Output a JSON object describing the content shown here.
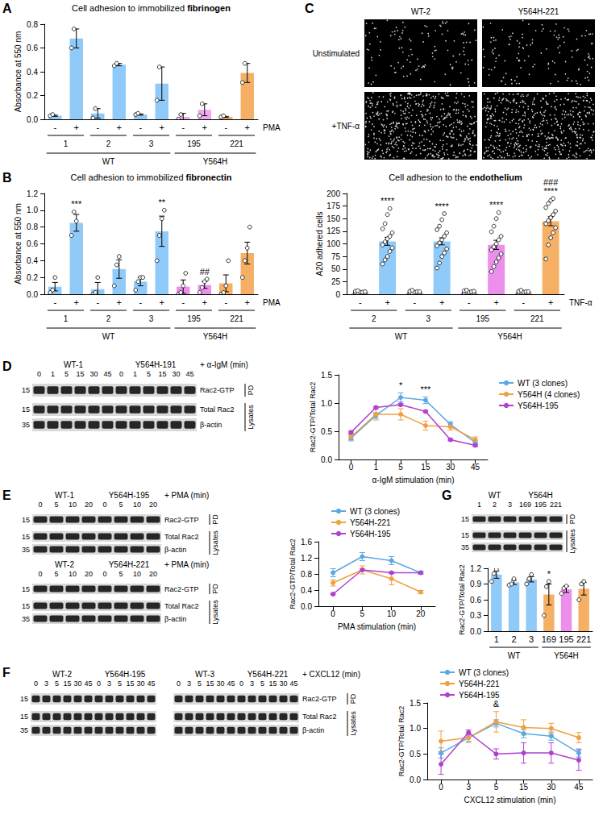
{
  "chart_data": [
    {
      "panel": "A",
      "type": "bar",
      "title": "Cell adhesion to immobilized fibrinogen",
      "y_label": "Absorbance at 550 nm",
      "categories": [
        "-",
        "+",
        "-",
        "+",
        "-",
        "+",
        "-",
        "+",
        "-",
        "+"
      ],
      "stimulus": "PMA",
      "clones": [
        "1",
        "2",
        "3",
        "195",
        "221"
      ],
      "genotypes": [
        {
          "label": "WT",
          "clones": 3
        },
        {
          "label": "Y564H",
          "clones": 2
        }
      ],
      "values": [
        0.03,
        0.68,
        0.05,
        0.46,
        0.04,
        0.3,
        0.02,
        0.08,
        0.02,
        0.39
      ],
      "errors": [
        0.005,
        0.08,
        0.04,
        0.01,
        0.005,
        0.14,
        0.03,
        0.05,
        0.005,
        0.08
      ],
      "points": [
        [
          0.03,
          0.04
        ],
        [
          0.6,
          0.76
        ],
        [
          0.01,
          0.09
        ],
        [
          0.45,
          0.47
        ],
        [
          0.04,
          0.05
        ],
        [
          0.16,
          0.44
        ],
        [
          0.0,
          0.04
        ],
        [
          0.03,
          0.13
        ],
        [
          0.02,
          0.03
        ],
        [
          0.31,
          0.47
        ]
      ],
      "colors": [
        "#90caf9",
        "#90caf9",
        "#90caf9",
        "#90caf9",
        "#90caf9",
        "#90caf9",
        "#f0a8f0",
        "#f0a8f0",
        "#f5b066",
        "#f5b066"
      ],
      "ylim": [
        0,
        0.8
      ],
      "yticks": [
        {
          "value": 0,
          "label": "0.0"
        },
        0.2,
        0.4,
        0.6,
        0.8
      ]
    },
    {
      "panel": "B",
      "type": "bar",
      "title": "Cell adhesion to immobilized fibronectin",
      "y_label": "Absorbance at 550 nm",
      "categories": [
        "-",
        "+",
        "-",
        "+",
        "-",
        "+",
        "-",
        "+",
        "-",
        "+"
      ],
      "stimulus": "PMA",
      "clones": [
        "1",
        "2",
        "3",
        "195",
        "221"
      ],
      "genotypes": [
        {
          "label": "WT",
          "clones": 3
        },
        {
          "label": "Y564H",
          "clones": 2
        }
      ],
      "values": [
        0.09,
        0.85,
        0.06,
        0.3,
        0.15,
        0.75,
        0.09,
        0.11,
        0.13,
        0.49
      ],
      "errors": [
        0.05,
        0.1,
        0.08,
        0.11,
        0.05,
        0.18,
        0.08,
        0.04,
        0.1,
        0.13
      ],
      "points": [
        [
          0.02,
          0.05,
          0.2
        ],
        [
          0.7,
          0.98,
          0.87
        ],
        [
          0.0,
          0.02,
          0.2
        ],
        [
          0.1,
          0.35,
          0.45
        ],
        [
          0.05,
          0.15,
          0.2,
          0.2
        ],
        [
          0.4,
          0.7,
          0.9,
          1.0
        ],
        [
          0.0,
          0.02,
          0.1,
          0.25
        ],
        [
          0.02,
          0.08,
          0.15,
          0.18
        ],
        [
          0.0,
          0.02,
          0.1,
          0.4
        ],
        [
          0.2,
          0.4,
          0.55,
          0.8
        ]
      ],
      "colors": [
        "#90caf9",
        "#90caf9",
        "#90caf9",
        "#90caf9",
        "#90caf9",
        "#90caf9",
        "#ec8fec",
        "#ec8fec",
        "#f5b066",
        "#f5b066"
      ],
      "annotations": [
        {
          "index": 1,
          "text": "***"
        },
        {
          "index": 5,
          "text": "**"
        },
        {
          "index": 7,
          "text": "##"
        }
      ],
      "ylim": [
        0,
        1.2
      ],
      "yticks": [
        {
          "value": 0,
          "label": "0.0"
        },
        0.2,
        0.4,
        0.6,
        0.8,
        {
          "value": 1,
          "label": "1.0"
        },
        1.2
      ]
    },
    {
      "type": "bar",
      "title": "Cell adhesion to the endothelium",
      "y_label": "A20 adhered cells",
      "categories": [
        "-",
        "+",
        "-",
        "+",
        "-",
        "+",
        "-",
        "+"
      ],
      "stimulus": "TNF-α",
      "clones": [
        "2",
        "3",
        "195",
        "221"
      ],
      "genotypes": [
        {
          "label": "WT",
          "clones": 2
        },
        {
          "label": "Y564H",
          "clones": 2
        }
      ],
      "values": [
        3,
        105,
        3,
        105,
        3,
        98,
        3,
        145
      ],
      "errors": [
        0.7,
        8,
        0.7,
        7,
        0.7,
        9,
        0.7,
        9
      ],
      "points": [
        [
          0,
          1,
          1,
          2,
          2,
          3,
          3,
          4,
          4,
          5,
          6,
          7
        ],
        [
          60,
          68,
          75,
          85,
          92,
          98,
          104,
          110,
          115,
          122,
          130,
          140,
          158,
          170
        ],
        [
          0,
          0,
          1,
          2,
          2,
          3,
          3,
          4,
          5,
          5,
          6,
          8
        ],
        [
          52,
          62,
          75,
          82,
          90,
          96,
          102,
          108,
          115,
          122,
          128,
          135,
          148,
          160
        ],
        [
          0,
          1,
          1,
          2,
          3,
          3,
          4,
          4,
          5,
          6,
          7,
          8
        ],
        [
          45,
          55,
          64,
          72,
          80,
          88,
          94,
          100,
          108,
          115,
          124,
          135,
          150,
          162
        ],
        [
          0,
          1,
          2,
          2,
          3,
          3,
          4,
          4,
          5,
          5,
          6,
          8
        ],
        [
          70,
          98,
          112,
          122,
          132,
          140,
          146,
          152,
          158,
          165,
          172,
          180,
          186,
          190
        ]
      ],
      "colors": [
        "#90caf9",
        "#90caf9",
        "#90caf9",
        "#90caf9",
        "#ec8fec",
        "#ec8fec",
        "#f5b066",
        "#f5b066"
      ],
      "annotations": [
        {
          "index": 1,
          "text": "****"
        },
        {
          "index": 3,
          "text": "****"
        },
        {
          "index": 5,
          "text": "****"
        },
        {
          "index": 7,
          "text": "****"
        },
        {
          "index": 7,
          "text": "###"
        }
      ],
      "ylim": [
        0,
        200
      ],
      "yticks": [
        0,
        25,
        50,
        75,
        100,
        125,
        150,
        175,
        200
      ]
    },
    {
      "panel": "D",
      "type": "line",
      "x_label": "α-IgM stimulation (min)",
      "y_label": "Rac2-GTP/Total Rac2",
      "categories": [
        "0",
        "1",
        "5",
        "15",
        "30",
        "45"
      ],
      "marker": "circle",
      "legend": "right",
      "series": [
        {
          "name": "WT (3 clones)",
          "color": "#5aa9e6",
          "values": [
            0.38,
            0.78,
            1.1,
            1.05,
            0.62,
            0.3
          ],
          "errors": [
            0.05,
            0.05,
            0.08,
            0.06,
            0.05,
            0.04
          ]
        },
        {
          "name": "Y564H (4 clones)",
          "color": "#f0a040",
          "values": [
            0.4,
            0.8,
            0.8,
            0.6,
            0.58,
            0.35
          ],
          "errors": [
            0.05,
            0.1,
            0.1,
            0.08,
            0.06,
            0.05
          ]
        },
        {
          "name": "Y564H-195",
          "color": "#b040d0",
          "values": [
            0.48,
            0.92,
            0.97,
            0.85,
            0.35,
            0.25
          ],
          "errors": [
            0.02,
            0.02,
            0.02,
            0.02,
            0.02,
            0.02
          ]
        }
      ],
      "annotations": [
        {
          "index": 2,
          "text": "*"
        },
        {
          "index": 3,
          "text": "***"
        }
      ],
      "ylim": [
        0,
        1.5
      ],
      "yticks": [
        {
          "value": 0,
          "label": "0.0"
        },
        0.5,
        {
          "value": 1,
          "label": "1.0"
        },
        1.5
      ]
    },
    {
      "panel": "E",
      "type": "line",
      "x_label": "PMA stimulation (min)",
      "y_label": "Rac2-GTP/Total Rac2",
      "categories": [
        "0",
        "5",
        "10",
        "20"
      ],
      "marker": "circle",
      "legend": "top",
      "series": [
        {
          "name": "WT (3 clones)",
          "color": "#5aa9e6",
          "values": [
            0.83,
            1.23,
            1.13,
            0.83
          ],
          "errors": [
            0.1,
            0.1,
            0.1,
            0.04
          ]
        },
        {
          "name": "Y564H-221",
          "color": "#f0a040",
          "values": [
            0.58,
            0.9,
            0.68,
            0.35
          ],
          "errors": [
            0.08,
            0.1,
            0.15,
            0.04
          ]
        },
        {
          "name": "Y564H-195",
          "color": "#b040d0",
          "values": [
            0.3,
            0.9,
            0.83,
            0.83
          ],
          "errors": [
            0.02,
            0.02,
            0.02,
            0.02
          ]
        }
      ],
      "ylim": [
        0,
        1.6
      ],
      "yticks": [
        {
          "value": 0,
          "label": "0.0"
        },
        0.4,
        0.8,
        1.2,
        1.6
      ]
    },
    {
      "panel": "F",
      "type": "line",
      "x_label": "CXCL12 stimulation (min)",
      "y_label": "Rac2-GTP/Total Rac2",
      "categories": [
        "0",
        "3",
        "5",
        "15",
        "30",
        "45"
      ],
      "marker": "circle",
      "legend": "top",
      "series": [
        {
          "name": "WT (3 clones)",
          "color": "#5aa9e6",
          "values": [
            0.52,
            0.82,
            1.1,
            0.9,
            0.85,
            0.52
          ],
          "errors": [
            0.1,
            0.07,
            0.07,
            0.08,
            0.08,
            0.08
          ]
        },
        {
          "name": "Y564H-221",
          "color": "#f0a040",
          "values": [
            0.75,
            0.82,
            1.13,
            1.02,
            1.0,
            0.82
          ],
          "errors": [
            0.2,
            0.1,
            0.2,
            0.15,
            0.1,
            0.1
          ]
        },
        {
          "name": "Y564H-195",
          "color": "#b040d0",
          "values": [
            0.3,
            0.92,
            0.5,
            0.52,
            0.52,
            0.38
          ],
          "errors": [
            0.2,
            0.05,
            0.1,
            0.2,
            0.2,
            0.2
          ]
        }
      ],
      "annotations": [
        {
          "index": 2,
          "text": "&"
        }
      ],
      "ylim": [
        0,
        1.5
      ],
      "yticks": [
        {
          "value": 0,
          "label": "0.0"
        },
        0.5,
        {
          "value": 1,
          "label": "1.0"
        },
        1.5
      ]
    },
    {
      "panel": "G",
      "type": "bar",
      "y_label": "Rac2-GTP/Total Rac2",
      "categories": [
        "1",
        "2",
        "3",
        "169",
        "195",
        "221"
      ],
      "genotypes": [
        {
          "label": "WT",
          "clones": 3
        },
        {
          "label": "Y564H",
          "clones": 3
        }
      ],
      "values": [
        1.08,
        0.93,
        0.99,
        0.7,
        0.8,
        0.81
      ],
      "errors": [
        0.07,
        0.04,
        0.05,
        0.2,
        0.06,
        0.12
      ],
      "points": [
        [
          0.95,
          1.1,
          1.18
        ],
        [
          0.88,
          0.9,
          1.0
        ],
        [
          0.9,
          1.0,
          1.08
        ],
        [
          0.3,
          0.85,
          0.95
        ],
        [
          0.72,
          0.82,
          0.86
        ],
        [
          0.6,
          0.9,
          0.95
        ]
      ],
      "colors": [
        "#90caf9",
        "#90caf9",
        "#90caf9",
        "#f5b066",
        "#ec8fec",
        "#f5b066"
      ],
      "annotations": [
        {
          "index": 3,
          "text": "*"
        }
      ],
      "ylim": [
        0,
        1.2
      ],
      "yticks": [
        {
          "value": 0,
          "label": "0.0"
        },
        0.3,
        0.6,
        0.9,
        1.2
      ]
    }
  ],
  "images": {
    "panel": "C",
    "columns": [
      "WT-2",
      "Y564H-221"
    ],
    "rows": [
      "Unstimulated",
      "+TNF-α"
    ]
  },
  "blots": [
    {
      "stimulus": "+ α-IgM (min)",
      "clones": [
        "WT-1",
        "Y564H-191"
      ],
      "lanes": [
        0,
        1,
        5,
        15,
        30,
        45,
        0,
        1,
        5,
        15,
        30,
        45
      ],
      "rows": [
        "Rac2-GTP",
        "Total Rac2",
        "β-actin"
      ],
      "mw": [
        15,
        15,
        35
      ],
      "fractions": [
        {
          "label": "PD",
          "rows": 1
        },
        {
          "label": "Lysates",
          "rows": 2
        }
      ]
    },
    {
      "stimulus": "+ PMA (min)",
      "clones": [
        "WT-1",
        "Y564H-195"
      ],
      "lanes": [
        0,
        5,
        10,
        20,
        0,
        5,
        10,
        20
      ],
      "rows": [
        "Rac2-GTP",
        "Total Rac2",
        "β-actin"
      ],
      "mw": [
        15,
        15,
        35
      ],
      "fractions": [
        {
          "label": "PD",
          "rows": 1
        },
        {
          "label": "Lysates",
          "rows": 2
        }
      ]
    },
    {
      "stimulus": "+ PMA (min)",
      "clones": [
        "WT-2",
        "Y564H-221"
      ],
      "lanes": [
        0,
        5,
        10,
        20,
        0,
        5,
        10,
        20
      ],
      "rows": [
        "Rac2-GTP",
        "Total Rac2",
        "β-actin"
      ],
      "mw": [
        15,
        15,
        35
      ],
      "fractions": [
        {
          "label": "PD",
          "rows": 1
        },
        {
          "label": "Lysates",
          "rows": 2
        }
      ]
    },
    {
      "clones": [
        "WT-2",
        "Y564H-195"
      ],
      "lanes": [
        0,
        3,
        5,
        15,
        30,
        45,
        0,
        3,
        5,
        15,
        30,
        45
      ],
      "mw": [
        15,
        15,
        35
      ]
    },
    {
      "stimulus": "+ CXCL12 (min)",
      "clones": [
        "WT-3",
        "Y564H-221"
      ],
      "lanes": [
        0,
        3,
        5,
        15,
        30,
        45,
        0,
        3,
        5,
        15,
        30,
        45
      ],
      "rows": [
        "Rac2-GTP",
        "Total Rac2",
        "β-actin"
      ],
      "fractions": [
        {
          "label": "PD",
          "rows": 1
        },
        {
          "label": "Lysates",
          "rows": 2
        }
      ]
    },
    {
      "clones": [
        "WT",
        "Y564H"
      ],
      "lanes": [
        1,
        2,
        3,
        169,
        195,
        221
      ],
      "mw": [
        15,
        15,
        35
      ],
      "fractions": [
        {
          "label": "PD",
          "rows": 1
        },
        {
          "label": "Lysates",
          "rows": 2
        }
      ]
    }
  ]
}
